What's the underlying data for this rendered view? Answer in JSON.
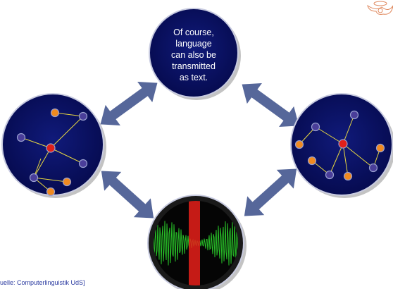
{
  "center_text": {
    "lines": [
      "Of course,",
      "language",
      "can also be",
      "transmitted",
      "as text."
    ]
  },
  "source": "uelle: Computerlinguistik UdS]"
}
